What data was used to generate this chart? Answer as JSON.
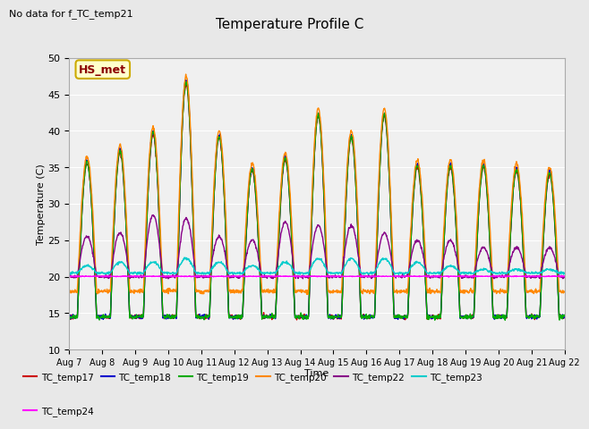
{
  "title": "Temperature Profile C",
  "subtitle": "No data for f_TC_temp21",
  "xlabel": "Time",
  "ylabel": "Temperature (C)",
  "ylim": [
    10,
    50
  ],
  "num_days": 15,
  "bg_color": "#e8e8e8",
  "plot_bg_color": "#f0f0f0",
  "hs_met_label": "HS_met",
  "hs_met_bg": "#ffffcc",
  "hs_met_border": "#ccaa00",
  "hs_met_text": "#8b0000",
  "series": [
    {
      "name": "TC_temp17",
      "color": "#cc0000"
    },
    {
      "name": "TC_temp18",
      "color": "#0000cc"
    },
    {
      "name": "TC_temp19",
      "color": "#00aa00"
    },
    {
      "name": "TC_temp20",
      "color": "#ff8800"
    },
    {
      "name": "TC_temp22",
      "color": "#880088"
    },
    {
      "name": "TC_temp23",
      "color": "#00cccc"
    },
    {
      "name": "TC_temp24",
      "color": "#ff00ff"
    }
  ],
  "x_tick_labels": [
    "Aug 7",
    "Aug 8",
    "Aug 9",
    "Aug 10",
    "Aug 11",
    "Aug 12",
    "Aug 13",
    "Aug 14",
    "Aug 15",
    "Aug 16",
    "Aug 17",
    "Aug 18",
    "Aug 19",
    "Aug 20",
    "Aug 21",
    "Aug 22"
  ],
  "y_ticks": [
    10,
    15,
    20,
    25,
    30,
    35,
    40,
    45,
    50
  ],
  "daily_peaks_18": [
    36,
    37.5,
    40,
    47,
    39.5,
    35,
    36.5,
    42.5,
    39.5,
    42.5,
    35.5,
    35.5,
    35.5,
    35,
    34.5
  ],
  "daily_peaks_22": [
    25.5,
    26,
    28.5,
    28,
    25.5,
    25,
    27.5,
    27,
    27,
    26,
    25,
    25,
    24,
    24,
    24
  ],
  "daily_peaks_23": [
    21.5,
    22,
    22,
    22.5,
    22,
    21.5,
    22,
    22.5,
    22.5,
    22.5,
    22,
    21.5,
    21,
    21,
    21
  ],
  "night_temp_main": 14.5,
  "night_temp_20": 18.0,
  "night_temp_22": 20.0,
  "night_temp_23": 20.5,
  "flat_24": 20.05
}
